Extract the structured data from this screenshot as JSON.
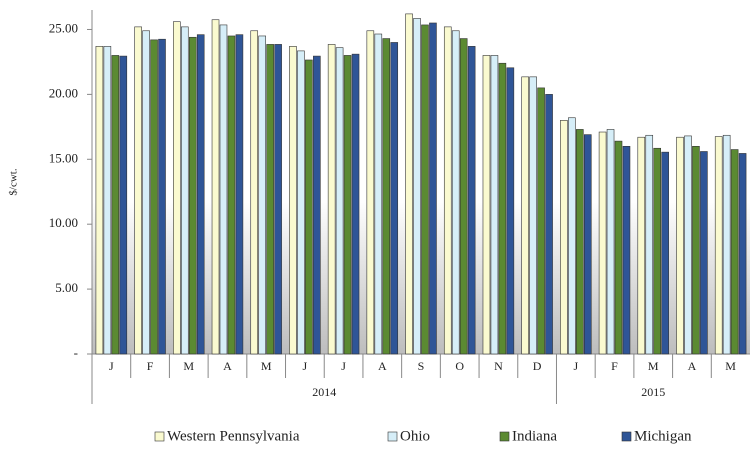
{
  "chart_data": {
    "type": "bar",
    "y_label": "$/cwt.",
    "category_groups": [
      {
        "label": "2014",
        "categories": [
          "J",
          "F",
          "M",
          "A",
          "M",
          "J",
          "J",
          "A",
          "S",
          "O",
          "N",
          "D"
        ]
      },
      {
        "label": "2015",
        "categories": [
          "J",
          "F",
          "M",
          "A",
          "M"
        ]
      }
    ],
    "series": [
      {
        "name": "Western Pennsylvania",
        "color": "#fafad0",
        "values": [
          23.7,
          25.2,
          25.6,
          25.75,
          24.9,
          23.7,
          23.85,
          24.9,
          26.2,
          25.2,
          23.0,
          21.35,
          18.0,
          17.1,
          16.7,
          16.7,
          16.75
        ]
      },
      {
        "name": "Ohio",
        "color": "#d6eef8",
        "values": [
          23.7,
          24.9,
          25.2,
          25.35,
          24.5,
          23.35,
          23.6,
          24.65,
          25.85,
          24.9,
          23.0,
          21.35,
          18.2,
          17.3,
          16.85,
          16.8,
          16.85
        ]
      },
      {
        "name": "Indiana",
        "color": "#5b8a32",
        "values": [
          23.0,
          24.2,
          24.4,
          24.5,
          23.85,
          22.65,
          23.0,
          24.3,
          25.35,
          24.3,
          22.4,
          20.5,
          17.3,
          16.4,
          15.85,
          16.0,
          15.75
        ]
      },
      {
        "name": "Michigan",
        "color": "#2f5597",
        "values": [
          22.95,
          24.25,
          24.6,
          24.6,
          23.85,
          22.95,
          23.1,
          24.0,
          25.5,
          23.7,
          22.05,
          20.0,
          16.9,
          16.0,
          15.55,
          15.6,
          15.45
        ]
      }
    ],
    "ylim": [
      0,
      26.5
    ],
    "yticks": [
      {
        "value": 0,
        "label": "-"
      },
      {
        "value": 5,
        "label": "5.00"
      },
      {
        "value": 10,
        "label": "10.00"
      },
      {
        "value": 15,
        "label": "15.00"
      },
      {
        "value": 20,
        "label": "20.00"
      },
      {
        "value": 25,
        "label": "25.00"
      }
    ],
    "legend": "bottom"
  }
}
